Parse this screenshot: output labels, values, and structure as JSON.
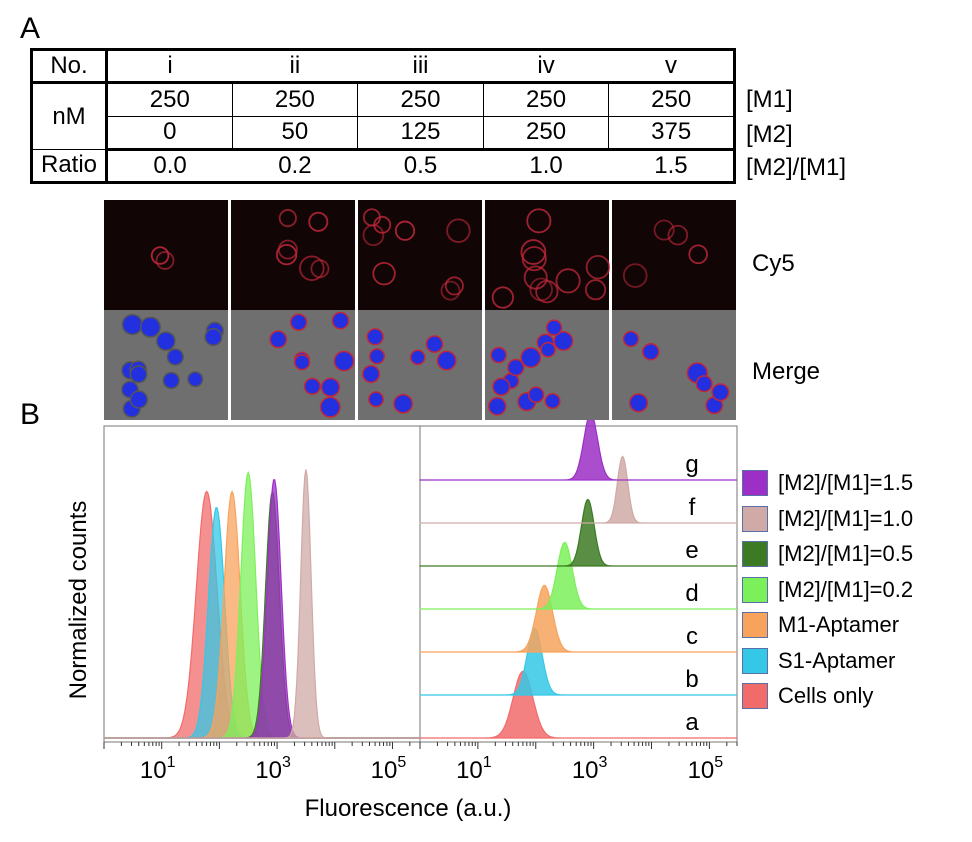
{
  "panel_labels": {
    "a": "A",
    "b": "B"
  },
  "table": {
    "header_label": "No.",
    "columns": [
      "i",
      "ii",
      "iii",
      "iv",
      "v"
    ],
    "unit_label": "nM",
    "m1_row": [
      "250",
      "250",
      "250",
      "250",
      "250"
    ],
    "m2_row": [
      "0",
      "50",
      "125",
      "250",
      "375"
    ],
    "ratio_label": "Ratio",
    "ratio_row": [
      "0.0",
      "0.2",
      "0.5",
      "1.0",
      "1.5"
    ],
    "side_labels": {
      "m1": "[M1]",
      "m2": "[M2]",
      "ratio": "[M2]/[M1]"
    }
  },
  "microscopy": {
    "channel_top": "Cy5",
    "channel_bottom": "Merge",
    "colors": {
      "cy5_bg": "#120506",
      "cy5_ring": "#c0283a",
      "merge_bg": "#6f6f6f",
      "nucleus": "#2330e0"
    }
  },
  "chart_data": [
    {
      "type": "area",
      "title": "",
      "ylabel": "Normalized counts",
      "xlabel": "Fluorescence (a.u.)",
      "xscale": "log",
      "xlim": [
        1,
        300000
      ],
      "xticks": [
        "10^1",
        "10^3",
        "10^5"
      ],
      "series": [
        {
          "name": "Cells only",
          "peak_log10": 1.78,
          "sigma": 0.18,
          "color": "#f26b6b"
        },
        {
          "name": "S1-Aptamer",
          "peak_log10": 1.95,
          "sigma": 0.14,
          "color": "#34c8e6"
        },
        {
          "name": "M1-Aptamer",
          "peak_log10": 2.22,
          "sigma": 0.14,
          "color": "#f7a35c"
        },
        {
          "name": "[M2]/[M1]=0.2",
          "peak_log10": 2.5,
          "sigma": 0.13,
          "color": "#7cf05a"
        },
        {
          "name": "[M2]/[M1]=0.5",
          "peak_log10": 2.92,
          "sigma": 0.12,
          "color": "#3c7a23"
        },
        {
          "name": "[M2]/[M1]=1.5",
          "peak_log10": 2.95,
          "sigma": 0.12,
          "color": "#9c2fc6"
        },
        {
          "name": "[M2]/[M1]=1.0",
          "peak_log10": 3.5,
          "sigma": 0.09,
          "color": "#cfaaa6"
        }
      ]
    },
    {
      "type": "area",
      "title": "",
      "xlabel": "Fluorescence (a.u.)",
      "xscale": "log",
      "xlim": [
        1,
        300000
      ],
      "xticks": [
        "10^1",
        "10^3",
        "10^5"
      ],
      "layout": "stacked-offset",
      "tracks": [
        {
          "label": "a",
          "name": "Cells only",
          "peak_log10": 1.78,
          "sigma": 0.17,
          "color": "#f26b6b"
        },
        {
          "label": "b",
          "name": "S1-Aptamer",
          "peak_log10": 1.98,
          "sigma": 0.13,
          "color": "#34c8e6"
        },
        {
          "label": "c",
          "name": "M1-Aptamer",
          "peak_log10": 2.15,
          "sigma": 0.14,
          "color": "#f7a35c"
        },
        {
          "label": "d",
          "name": "[M2]/[M1]=0.2",
          "peak_log10": 2.5,
          "sigma": 0.13,
          "color": "#7cf05a"
        },
        {
          "label": "e",
          "name": "[M2]/[M1]=0.5",
          "peak_log10": 2.9,
          "sigma": 0.11,
          "color": "#3c7a23"
        },
        {
          "label": "f",
          "name": "[M2]/[M1]=1.0",
          "peak_log10": 3.5,
          "sigma": 0.09,
          "color": "#cfaaa6"
        },
        {
          "label": "g",
          "name": "[M2]/[M1]=1.5",
          "peak_log10": 2.95,
          "sigma": 0.12,
          "color": "#9c2fc6"
        }
      ]
    }
  ],
  "legend": [
    {
      "label": "[M2]/[M1]=1.5",
      "color": "#9c2fc6"
    },
    {
      "label": "[M2]/[M1]=1.0",
      "color": "#cfaaa6"
    },
    {
      "label": "[M2]/[M1]=0.5",
      "color": "#3c7a23"
    },
    {
      "label": "[M2]/[M1]=0.2",
      "color": "#7cf05a"
    },
    {
      "label": "M1-Aptamer",
      "color": "#f7a35c"
    },
    {
      "label": "S1-Aptamer",
      "color": "#34c8e6"
    },
    {
      "label": "Cells only",
      "color": "#f26b6b"
    }
  ]
}
